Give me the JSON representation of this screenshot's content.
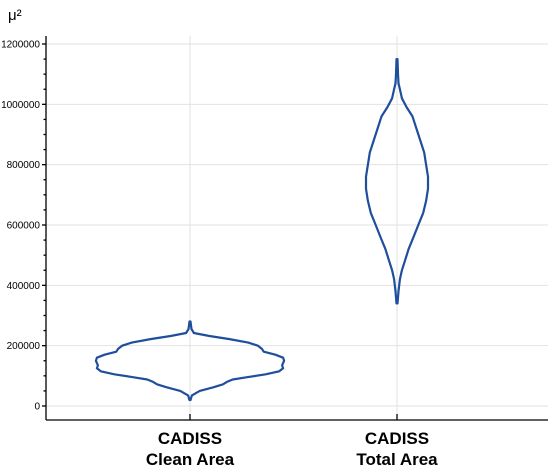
{
  "chart_data": {
    "type": "violin",
    "unit_label": "μ²",
    "ylim": [
      0,
      1200000
    ],
    "y_ticks": [
      0,
      200000,
      400000,
      600000,
      800000,
      1000000,
      1200000
    ],
    "y_tick_labels": [
      "0",
      "200000",
      "400000",
      "600000",
      "800000",
      "1000000",
      "1200000"
    ],
    "grid": true,
    "series_color": "#1f4e9c",
    "categories": [
      {
        "label_line1": "CADISS",
        "label_line2": "Clean Area",
        "min": 20000,
        "max": 280000,
        "profile": [
          [
            20000,
            0.5
          ],
          [
            35000,
            2
          ],
          [
            50000,
            10
          ],
          [
            62000,
            24
          ],
          [
            72000,
            34
          ],
          [
            80000,
            38
          ],
          [
            88000,
            44
          ],
          [
            95000,
            58
          ],
          [
            105000,
            78
          ],
          [
            115000,
            92
          ],
          [
            125000,
            96
          ],
          [
            135000,
            95
          ],
          [
            150000,
            97
          ],
          [
            160000,
            96
          ],
          [
            170000,
            88
          ],
          [
            180000,
            76
          ],
          [
            190000,
            74
          ],
          [
            200000,
            70
          ],
          [
            210000,
            60
          ],
          [
            222000,
            40
          ],
          [
            232000,
            20
          ],
          [
            242000,
            4
          ],
          [
            255000,
            1.5
          ],
          [
            280000,
            0.5
          ]
        ]
      },
      {
        "label_line1": "CADISS",
        "label_line2": "Total Area",
        "min": 340000,
        "max": 1150000,
        "profile": [
          [
            340000,
            0.5
          ],
          [
            380000,
            1.5
          ],
          [
            420000,
            3
          ],
          [
            450000,
            5
          ],
          [
            480000,
            8
          ],
          [
            520000,
            12
          ],
          [
            560000,
            17
          ],
          [
            600000,
            22
          ],
          [
            640000,
            27
          ],
          [
            680000,
            30
          ],
          [
            720000,
            32
          ],
          [
            760000,
            32
          ],
          [
            800000,
            30
          ],
          [
            840000,
            28
          ],
          [
            880000,
            24
          ],
          [
            920000,
            20
          ],
          [
            960000,
            16
          ],
          [
            990000,
            10
          ],
          [
            1020000,
            5
          ],
          [
            1050000,
            3
          ],
          [
            1070000,
            1.5
          ],
          [
            1100000,
            1
          ],
          [
            1150000,
            0.5
          ]
        ]
      }
    ]
  }
}
